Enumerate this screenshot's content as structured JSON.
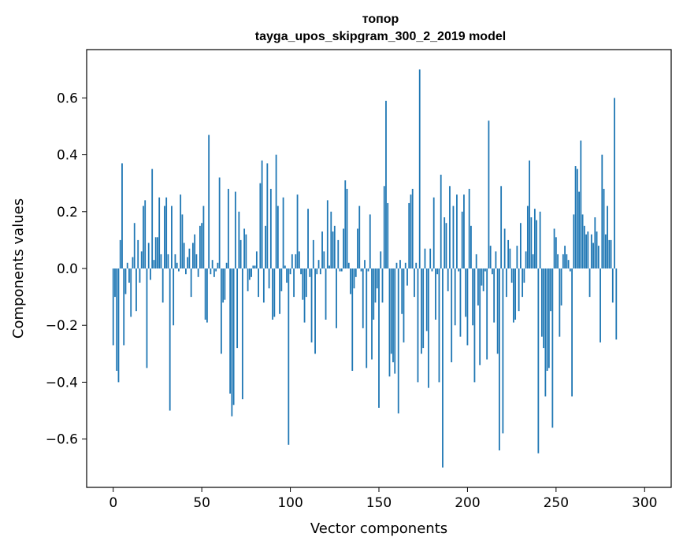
{
  "chart_data": {
    "type": "bar",
    "title": "топор",
    "subtitle": "tayga_upos_skipgram_300_2_2019 model",
    "xlabel": "Vector components",
    "ylabel": "Components values",
    "xlim": [
      -15,
      315
    ],
    "ylim": [
      -0.77,
      0.77
    ],
    "xticks": [
      0,
      50,
      100,
      150,
      200,
      250,
      300
    ],
    "yticks": [
      -0.6,
      -0.4,
      -0.2,
      0.0,
      0.2,
      0.4,
      0.6
    ],
    "ytick_labels": [
      "−0.6",
      "−0.4",
      "−0.2",
      "0.0",
      "0.2",
      "0.4",
      "0.6"
    ],
    "bar_color": "#1f77b4",
    "grid": false,
    "values": [
      -0.27,
      -0.1,
      -0.36,
      -0.4,
      0.1,
      0.37,
      -0.27,
      -0.09,
      0.02,
      -0.05,
      -0.17,
      0.04,
      0.16,
      -0.15,
      0.1,
      -0.05,
      0.06,
      0.22,
      0.24,
      -0.35,
      0.09,
      -0.04,
      0.35,
      0.03,
      0.11,
      0.11,
      0.25,
      0.05,
      -0.12,
      0.22,
      0.25,
      0.05,
      -0.5,
      0.22,
      -0.2,
      0.05,
      0.02,
      -0.01,
      0.26,
      0.19,
      0.09,
      -0.02,
      0.04,
      0.07,
      -0.1,
      0.09,
      0.12,
      0.05,
      -0.03,
      0.15,
      0.16,
      0.22,
      -0.18,
      -0.19,
      0.47,
      -0.02,
      0.03,
      -0.03,
      -0.01,
      0.02,
      0.32,
      -0.3,
      -0.12,
      -0.11,
      0.02,
      0.28,
      -0.44,
      -0.52,
      -0.48,
      0.27,
      -0.28,
      0.2,
      0.1,
      -0.46,
      0.14,
      0.12,
      -0.08,
      -0.04,
      -0.03,
      0.01,
      0.01,
      0.06,
      -0.1,
      0.3,
      0.38,
      -0.12,
      0.15,
      0.37,
      -0.07,
      0.28,
      -0.18,
      -0.17,
      0.4,
      0.22,
      -0.16,
      -0.08,
      0.25,
      0.01,
      -0.05,
      -0.62,
      -0.02,
      0.05,
      -0.1,
      0.05,
      0.26,
      0.06,
      -0.02,
      -0.11,
      -0.19,
      -0.1,
      0.21,
      -0.03,
      -0.26,
      0.1,
      -0.3,
      -0.02,
      0.03,
      -0.02,
      0.13,
      0.06,
      -0.18,
      0.24,
      0.01,
      0.2,
      0.13,
      0.15,
      -0.21,
      0.1,
      -0.01,
      -0.01,
      0.14,
      0.31,
      0.28,
      0.02,
      -0.09,
      -0.36,
      -0.07,
      -0.03,
      0.14,
      0.22,
      -0.01,
      -0.21,
      0.03,
      -0.35,
      -0.01,
      0.19,
      -0.32,
      -0.18,
      -0.12,
      -0.07,
      -0.49,
      0.06,
      -0.12,
      0.29,
      0.59,
      0.23,
      -0.38,
      -0.3,
      -0.33,
      -0.37,
      0.02,
      -0.51,
      0.03,
      -0.16,
      -0.26,
      0.02,
      -0.06,
      0.23,
      0.26,
      0.28,
      -0.1,
      0.02,
      -0.4,
      0.7,
      -0.3,
      -0.28,
      0.07,
      -0.22,
      -0.42,
      0.07,
      -0.01,
      0.25,
      -0.18,
      -0.02,
      -0.4,
      0.33,
      -0.7,
      0.18,
      0.16,
      -0.08,
      0.29,
      -0.33,
      0.22,
      -0.2,
      0.26,
      -0.01,
      -0.24,
      0.2,
      0.26,
      -0.17,
      -0.27,
      0.28,
      0.15,
      -0.2,
      -0.4,
      0.05,
      -0.13,
      -0.34,
      -0.06,
      -0.08,
      -0.01,
      -0.32,
      0.52,
      0.08,
      -0.02,
      -0.19,
      0.06,
      -0.3,
      -0.64,
      0.29,
      -0.58,
      0.14,
      -0.1,
      0.1,
      0.07,
      -0.05,
      -0.19,
      -0.18,
      0.08,
      -0.15,
      0.16,
      -0.1,
      -0.05,
      0.06,
      0.22,
      0.38,
      0.18,
      0.05,
      0.21,
      0.17,
      -0.65,
      0.2,
      -0.24,
      -0.28,
      -0.45,
      -0.36,
      -0.35,
      -0.15,
      -0.56,
      0.14,
      0.11,
      0.05,
      -0.24,
      -0.13,
      0.05,
      0.08,
      0.05,
      0.03,
      -0.01,
      -0.45,
      0.19,
      0.36,
      0.35,
      0.27,
      0.45,
      0.19,
      0.15,
      0.12,
      0.13,
      -0.1,
      0.12,
      0.09,
      0.18,
      0.13,
      0.08,
      -0.26,
      0.4,
      0.28,
      0.12,
      0.22,
      0.1,
      0.1,
      -0.12,
      0.6,
      -0.25
    ]
  }
}
